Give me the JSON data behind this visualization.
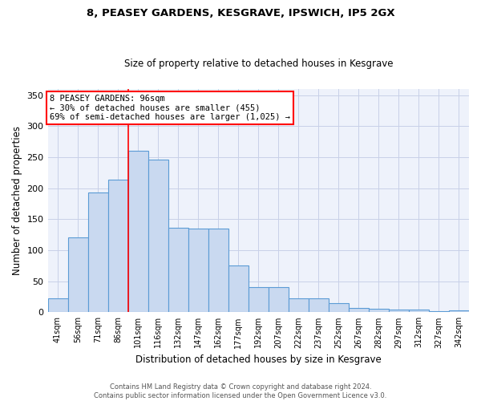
{
  "title1": "8, PEASEY GARDENS, KESGRAVE, IPSWICH, IP5 2GX",
  "title2": "Size of property relative to detached houses in Kesgrave",
  "xlabel": "Distribution of detached houses by size in Kesgrave",
  "ylabel": "Number of detached properties",
  "categories": [
    "41sqm",
    "56sqm",
    "71sqm",
    "86sqm",
    "101sqm",
    "116sqm",
    "132sqm",
    "147sqm",
    "162sqm",
    "177sqm",
    "192sqm",
    "207sqm",
    "222sqm",
    "237sqm",
    "252sqm",
    "267sqm",
    "282sqm",
    "297sqm",
    "312sqm",
    "327sqm",
    "342sqm"
  ],
  "values": [
    22,
    120,
    193,
    214,
    260,
    246,
    136,
    135,
    135,
    75,
    41,
    41,
    23,
    23,
    15,
    7,
    5,
    4,
    4,
    2,
    3
  ],
  "bar_color": "#c9d9f0",
  "bar_edge_color": "#5b9bd5",
  "annotation_box_text": "8 PEASEY GARDENS: 96sqm\n← 30% of detached houses are smaller (455)\n69% of semi-detached houses are larger (1,025) →",
  "annotation_box_color": "white",
  "annotation_box_edge_color": "red",
  "vline_color": "red",
  "vline_x": 3.5,
  "ylim": [
    0,
    360
  ],
  "yticks": [
    0,
    50,
    100,
    150,
    200,
    250,
    300,
    350
  ],
  "grid_color": "#c8d0e8",
  "background_color": "#eef2fb",
  "footnote": "Contains HM Land Registry data © Crown copyright and database right 2024.\nContains public sector information licensed under the Open Government Licence v3.0."
}
